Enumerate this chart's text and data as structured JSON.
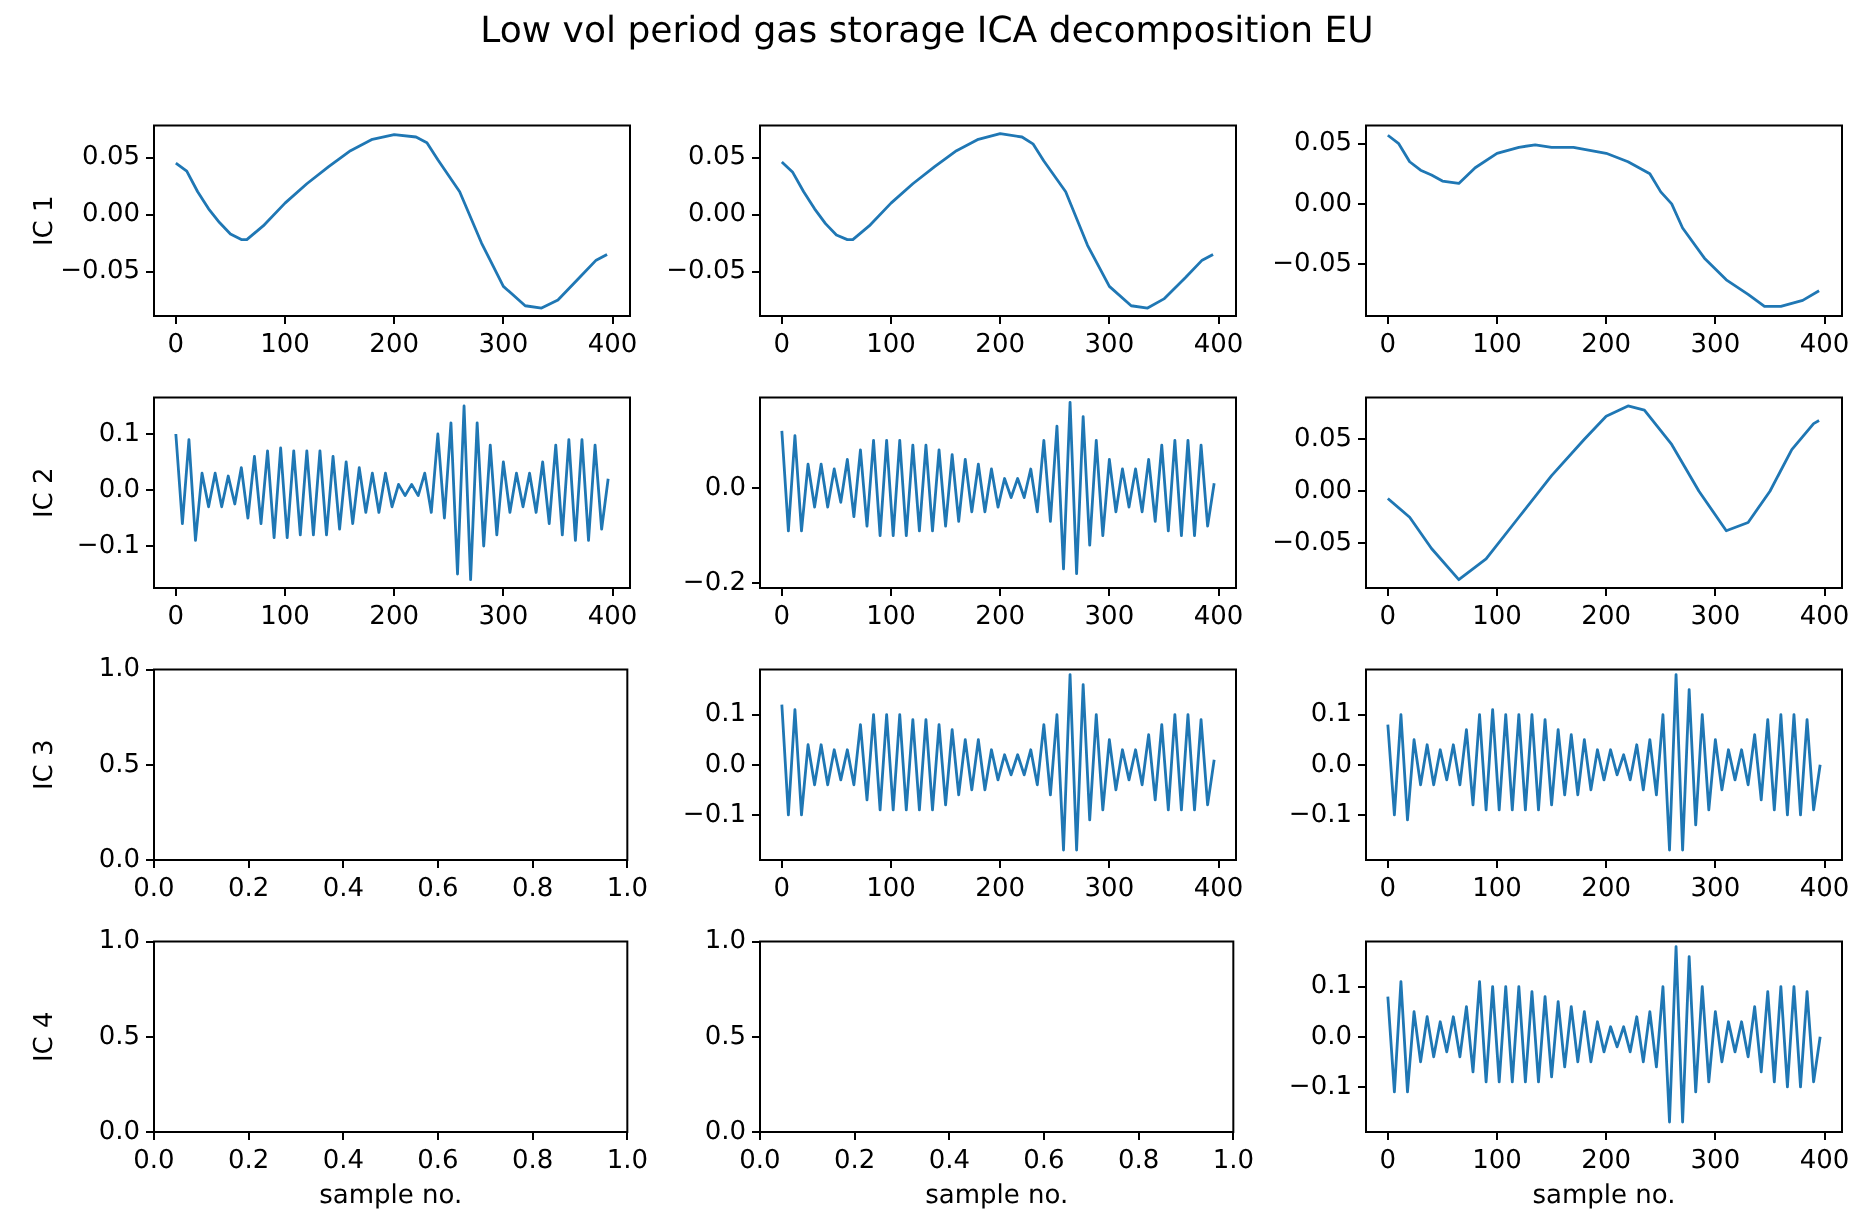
{
  "chart_data": [
    {
      "type": "line",
      "title": "Low vol period gas storage ICA decomposition EU",
      "ylabel": "IC 1",
      "color": "#1f77b4",
      "x": [
        0,
        10,
        20,
        30,
        40,
        50,
        60,
        65,
        80,
        100,
        120,
        140,
        160,
        180,
        200,
        220,
        230,
        240,
        260,
        280,
        300,
        320,
        335,
        350,
        370,
        385,
        395
      ],
      "values": [
        0.045,
        0.038,
        0.02,
        0.005,
        -0.007,
        -0.017,
        -0.022,
        -0.022,
        -0.01,
        0.01,
        0.027,
        0.042,
        0.056,
        0.066,
        0.07,
        0.068,
        0.063,
        0.048,
        0.02,
        -0.025,
        -0.063,
        -0.08,
        -0.082,
        -0.075,
        -0.055,
        -0.04,
        -0.035
      ],
      "xlim": [
        -20,
        416
      ],
      "ylim": [
        -0.089,
        0.078
      ],
      "xticks": [
        0,
        100,
        200,
        300,
        400
      ],
      "yticks": [
        {
          "value": -0.05,
          "label": "−0.05"
        },
        {
          "value": 0,
          "label": "0.00"
        },
        {
          "value": 0.05,
          "label": "0.05"
        }
      ],
      "grid": false,
      "legend": false
    },
    {
      "type": "line",
      "color": "#1f77b4",
      "x": [
        0,
        10,
        20,
        30,
        40,
        50,
        60,
        65,
        80,
        100,
        120,
        140,
        160,
        180,
        200,
        220,
        230,
        240,
        260,
        280,
        300,
        320,
        335,
        350,
        370,
        385,
        395
      ],
      "values": [
        0.046,
        0.037,
        0.02,
        0.005,
        -0.008,
        -0.018,
        -0.022,
        -0.022,
        -0.01,
        0.01,
        0.027,
        0.042,
        0.056,
        0.066,
        0.071,
        0.068,
        0.062,
        0.047,
        0.02,
        -0.027,
        -0.063,
        -0.08,
        -0.082,
        -0.074,
        -0.055,
        -0.04,
        -0.035
      ],
      "xlim": [
        -20,
        416
      ],
      "ylim": [
        -0.089,
        0.078
      ],
      "xticks": [
        0,
        100,
        200,
        300,
        400
      ],
      "yticks": [
        {
          "value": -0.05,
          "label": "−0.05"
        },
        {
          "value": 0,
          "label": "0.00"
        },
        {
          "value": 0.05,
          "label": "0.05"
        }
      ],
      "grid": false,
      "legend": false
    },
    {
      "type": "line",
      "color": "#1f77b4",
      "x": [
        0,
        10,
        20,
        30,
        40,
        50,
        65,
        80,
        100,
        120,
        135,
        150,
        170,
        200,
        220,
        240,
        250,
        260,
        270,
        290,
        310,
        330,
        345,
        360,
        380,
        395
      ],
      "values": [
        0.057,
        0.05,
        0.035,
        0.028,
        0.024,
        0.019,
        0.017,
        0.03,
        0.042,
        0.047,
        0.049,
        0.047,
        0.047,
        0.042,
        0.035,
        0.025,
        0.01,
        0.0,
        -0.02,
        -0.045,
        -0.063,
        -0.075,
        -0.085,
        -0.085,
        -0.08,
        -0.072
      ],
      "xlim": [
        -20,
        416
      ],
      "ylim": [
        -0.093,
        0.065
      ],
      "xticks": [
        0,
        100,
        200,
        300,
        400
      ],
      "yticks": [
        {
          "value": -0.05,
          "label": "−0.05"
        },
        {
          "value": 0,
          "label": "0.00"
        },
        {
          "value": 0.05,
          "label": "0.05"
        }
      ],
      "grid": false,
      "legend": false
    },
    {
      "type": "line",
      "ylabel": "IC 2",
      "color": "#1f77b4",
      "x": [
        0,
        6,
        12,
        18,
        24,
        30,
        36,
        42,
        48,
        54,
        60,
        66,
        72,
        78,
        84,
        90,
        96,
        102,
        108,
        114,
        120,
        126,
        132,
        138,
        144,
        150,
        156,
        162,
        168,
        174,
        180,
        186,
        192,
        198,
        204,
        210,
        216,
        222,
        228,
        234,
        240,
        246,
        252,
        258,
        264,
        270,
        276,
        282,
        288,
        294,
        300,
        306,
        312,
        318,
        324,
        330,
        336,
        342,
        348,
        354,
        360,
        366,
        372,
        378,
        384,
        390,
        396
      ],
      "values": [
        0.1,
        -0.06,
        0.09,
        -0.09,
        0.03,
        -0.03,
        0.03,
        -0.03,
        0.025,
        -0.025,
        0.04,
        -0.05,
        0.06,
        -0.06,
        0.07,
        -0.085,
        0.075,
        -0.085,
        0.07,
        -0.08,
        0.07,
        -0.08,
        0.07,
        -0.08,
        0.06,
        -0.07,
        0.05,
        -0.06,
        0.04,
        -0.04,
        0.03,
        -0.04,
        0.03,
        -0.03,
        0.01,
        -0.01,
        0.01,
        -0.01,
        0.03,
        -0.04,
        0.1,
        -0.05,
        0.12,
        -0.15,
        0.15,
        -0.16,
        0.12,
        -0.1,
        0.08,
        -0.08,
        0.05,
        -0.04,
        0.03,
        -0.03,
        0.03,
        -0.04,
        0.05,
        -0.06,
        0.08,
        -0.08,
        0.09,
        -0.09,
        0.09,
        -0.09,
        0.08,
        -0.07,
        0.02
      ],
      "xlim": [
        -20,
        416
      ],
      "ylim": [
        -0.175,
        0.165
      ],
      "xticks": [
        0,
        100,
        200,
        300,
        400
      ],
      "yticks": [
        {
          "value": -0.1,
          "label": "−0.1"
        },
        {
          "value": 0,
          "label": "0.0"
        },
        {
          "value": 0.1,
          "label": "0.1"
        }
      ],
      "grid": false,
      "legend": false
    },
    {
      "type": "line",
      "color": "#1f77b4",
      "x": [
        0,
        6,
        12,
        18,
        24,
        30,
        36,
        42,
        48,
        54,
        60,
        66,
        72,
        78,
        84,
        90,
        96,
        102,
        108,
        114,
        120,
        126,
        132,
        138,
        144,
        150,
        156,
        162,
        168,
        174,
        180,
        186,
        192,
        198,
        204,
        210,
        216,
        222,
        228,
        234,
        240,
        246,
        252,
        258,
        264,
        270,
        276,
        282,
        288,
        294,
        300,
        306,
        312,
        318,
        324,
        330,
        336,
        342,
        348,
        354,
        360,
        366,
        372,
        378,
        384,
        390,
        396
      ],
      "values": [
        0.12,
        -0.09,
        0.11,
        -0.09,
        0.05,
        -0.04,
        0.05,
        -0.04,
        0.04,
        -0.03,
        0.06,
        -0.06,
        0.08,
        -0.08,
        0.1,
        -0.1,
        0.1,
        -0.1,
        0.1,
        -0.1,
        0.09,
        -0.09,
        0.09,
        -0.09,
        0.08,
        -0.08,
        0.07,
        -0.07,
        0.06,
        -0.05,
        0.05,
        -0.05,
        0.04,
        -0.04,
        0.02,
        -0.02,
        0.02,
        -0.02,
        0.04,
        -0.05,
        0.1,
        -0.07,
        0.13,
        -0.17,
        0.18,
        -0.18,
        0.15,
        -0.12,
        0.1,
        -0.1,
        0.06,
        -0.05,
        0.04,
        -0.04,
        0.04,
        -0.05,
        0.06,
        -0.07,
        0.09,
        -0.09,
        0.1,
        -0.1,
        0.1,
        -0.1,
        0.09,
        -0.08,
        0.01
      ],
      "xlim": [
        -20,
        416
      ],
      "ylim": [
        -0.21,
        0.19
      ],
      "xticks": [
        0,
        100,
        200,
        300,
        400
      ],
      "yticks": [
        {
          "value": -0.2,
          "label": "−0.2"
        },
        {
          "value": 0,
          "label": "0.0"
        }
      ],
      "grid": false,
      "legend": false
    },
    {
      "type": "line",
      "color": "#1f77b4",
      "x": [
        0,
        20,
        40,
        65,
        90,
        120,
        150,
        180,
        200,
        220,
        235,
        260,
        285,
        310,
        330,
        350,
        370,
        390,
        395
      ],
      "values": [
        -0.007,
        -0.025,
        -0.055,
        -0.085,
        -0.065,
        -0.025,
        0.015,
        0.05,
        0.072,
        0.082,
        0.078,
        0.045,
        0.0,
        -0.038,
        -0.03,
        0.0,
        0.04,
        0.065,
        0.068
      ],
      "xlim": [
        -20,
        416
      ],
      "ylim": [
        -0.093,
        0.09
      ],
      "xticks": [
        0,
        100,
        200,
        300,
        400
      ],
      "yticks": [
        {
          "value": -0.05,
          "label": "−0.05"
        },
        {
          "value": 0,
          "label": "0.00"
        },
        {
          "value": 0.05,
          "label": "0.05"
        }
      ],
      "grid": false,
      "legend": false
    },
    {
      "type": "line",
      "ylabel": "IC 3",
      "xlim": [
        0,
        1
      ],
      "ylim": [
        0,
        1
      ],
      "xticks": [
        {
          "value": 0,
          "label": "0.0"
        },
        {
          "value": 0.2,
          "label": "0.2"
        },
        {
          "value": 0.4,
          "label": "0.4"
        },
        {
          "value": 0.6,
          "label": "0.6"
        },
        {
          "value": 0.8,
          "label": "0.8"
        },
        {
          "value": 1,
          "label": "1.0"
        }
      ],
      "yticks": [
        {
          "value": 0,
          "label": "0.0"
        },
        {
          "value": 0.5,
          "label": "0.5"
        },
        {
          "value": 1,
          "label": "1.0"
        }
      ],
      "grid": false,
      "legend": false
    },
    {
      "type": "line",
      "color": "#1f77b4",
      "x": [
        0,
        6,
        12,
        18,
        24,
        30,
        36,
        42,
        48,
        54,
        60,
        66,
        72,
        78,
        84,
        90,
        96,
        102,
        108,
        114,
        120,
        126,
        132,
        138,
        144,
        150,
        156,
        162,
        168,
        174,
        180,
        186,
        192,
        198,
        204,
        210,
        216,
        222,
        228,
        234,
        240,
        246,
        252,
        258,
        264,
        270,
        276,
        282,
        288,
        294,
        300,
        306,
        312,
        318,
        324,
        330,
        336,
        342,
        348,
        354,
        360,
        366,
        372,
        378,
        384,
        390,
        396
      ],
      "values": [
        0.12,
        -0.1,
        0.11,
        -0.1,
        0.04,
        -0.04,
        0.04,
        -0.04,
        0.03,
        -0.03,
        0.03,
        -0.04,
        0.08,
        -0.07,
        0.1,
        -0.09,
        0.1,
        -0.09,
        0.1,
        -0.09,
        0.09,
        -0.09,
        0.09,
        -0.09,
        0.08,
        -0.08,
        0.07,
        -0.06,
        0.05,
        -0.05,
        0.05,
        -0.05,
        0.03,
        -0.03,
        0.02,
        -0.02,
        0.02,
        -0.02,
        0.03,
        -0.04,
        0.08,
        -0.06,
        0.1,
        -0.17,
        0.18,
        -0.17,
        0.16,
        -0.11,
        0.1,
        -0.09,
        0.05,
        -0.05,
        0.03,
        -0.03,
        0.03,
        -0.04,
        0.06,
        -0.07,
        0.08,
        -0.09,
        0.1,
        -0.09,
        0.1,
        -0.09,
        0.09,
        -0.08,
        0.01
      ],
      "xlim": [
        -20,
        416
      ],
      "ylim": [
        -0.19,
        0.19
      ],
      "xticks": [
        0,
        100,
        200,
        300,
        400
      ],
      "yticks": [
        {
          "value": -0.1,
          "label": "−0.1"
        },
        {
          "value": 0,
          "label": "0.0"
        },
        {
          "value": 0.1,
          "label": "0.1"
        }
      ],
      "grid": false,
      "legend": false
    },
    {
      "type": "line",
      "color": "#1f77b4",
      "x": [
        0,
        6,
        12,
        18,
        24,
        30,
        36,
        42,
        48,
        54,
        60,
        66,
        72,
        78,
        84,
        90,
        96,
        102,
        108,
        114,
        120,
        126,
        132,
        138,
        144,
        150,
        156,
        162,
        168,
        174,
        180,
        186,
        192,
        198,
        204,
        210,
        216,
        222,
        228,
        234,
        240,
        246,
        252,
        258,
        264,
        270,
        276,
        282,
        288,
        294,
        300,
        306,
        312,
        318,
        324,
        330,
        336,
        342,
        348,
        354,
        360,
        366,
        372,
        378,
        384,
        390,
        396
      ],
      "values": [
        0.08,
        -0.1,
        0.1,
        -0.11,
        0.05,
        -0.04,
        0.04,
        -0.04,
        0.03,
        -0.03,
        0.04,
        -0.04,
        0.07,
        -0.08,
        0.1,
        -0.09,
        0.11,
        -0.09,
        0.1,
        -0.09,
        0.1,
        -0.09,
        0.1,
        -0.09,
        0.09,
        -0.08,
        0.07,
        -0.06,
        0.06,
        -0.06,
        0.05,
        -0.05,
        0.03,
        -0.03,
        0.03,
        -0.02,
        0.02,
        -0.03,
        0.04,
        -0.05,
        0.05,
        -0.06,
        0.1,
        -0.17,
        0.18,
        -0.17,
        0.15,
        -0.12,
        0.1,
        -0.09,
        0.05,
        -0.05,
        0.03,
        -0.03,
        0.03,
        -0.04,
        0.06,
        -0.07,
        0.09,
        -0.09,
        0.1,
        -0.1,
        0.1,
        -0.1,
        0.09,
        -0.09,
        0.0
      ],
      "xlim": [
        -20,
        416
      ],
      "ylim": [
        -0.19,
        0.19
      ],
      "xticks": [
        0,
        100,
        200,
        300,
        400
      ],
      "yticks": [
        {
          "value": -0.1,
          "label": "−0.1"
        },
        {
          "value": 0,
          "label": "0.0"
        },
        {
          "value": 0.1,
          "label": "0.1"
        }
      ],
      "grid": false,
      "legend": false
    },
    {
      "type": "line",
      "ylabel": "IC 4",
      "xlabel": "sample no.",
      "xlim": [
        0,
        1
      ],
      "ylim": [
        0,
        1
      ],
      "xticks": [
        {
          "value": 0,
          "label": "0.0"
        },
        {
          "value": 0.2,
          "label": "0.2"
        },
        {
          "value": 0.4,
          "label": "0.4"
        },
        {
          "value": 0.6,
          "label": "0.6"
        },
        {
          "value": 0.8,
          "label": "0.8"
        },
        {
          "value": 1,
          "label": "1.0"
        }
      ],
      "yticks": [
        {
          "value": 0,
          "label": "0.0"
        },
        {
          "value": 0.5,
          "label": "0.5"
        },
        {
          "value": 1,
          "label": "1.0"
        }
      ],
      "grid": false,
      "legend": false
    },
    {
      "type": "line",
      "xlabel": "sample no.",
      "xlim": [
        0,
        1
      ],
      "ylim": [
        0,
        1
      ],
      "xticks": [
        {
          "value": 0,
          "label": "0.0"
        },
        {
          "value": 0.2,
          "label": "0.2"
        },
        {
          "value": 0.4,
          "label": "0.4"
        },
        {
          "value": 0.6,
          "label": "0.6"
        },
        {
          "value": 0.8,
          "label": "0.8"
        },
        {
          "value": 1,
          "label": "1.0"
        }
      ],
      "yticks": [
        {
          "value": 0,
          "label": "0.0"
        },
        {
          "value": 0.5,
          "label": "0.5"
        },
        {
          "value": 1,
          "label": "1.0"
        }
      ],
      "grid": false,
      "legend": false
    },
    {
      "type": "line",
      "xlabel": "sample no.",
      "color": "#1f77b4",
      "x": [
        0,
        6,
        12,
        18,
        24,
        30,
        36,
        42,
        48,
        54,
        60,
        66,
        72,
        78,
        84,
        90,
        96,
        102,
        108,
        114,
        120,
        126,
        132,
        138,
        144,
        150,
        156,
        162,
        168,
        174,
        180,
        186,
        192,
        198,
        204,
        210,
        216,
        222,
        228,
        234,
        240,
        246,
        252,
        258,
        264,
        270,
        276,
        282,
        288,
        294,
        300,
        306,
        312,
        318,
        324,
        330,
        336,
        342,
        348,
        354,
        360,
        366,
        372,
        378,
        384,
        390,
        396
      ],
      "values": [
        0.08,
        -0.11,
        0.11,
        -0.11,
        0.05,
        -0.05,
        0.04,
        -0.04,
        0.03,
        -0.03,
        0.04,
        -0.04,
        0.06,
        -0.07,
        0.11,
        -0.09,
        0.1,
        -0.09,
        0.1,
        -0.09,
        0.1,
        -0.09,
        0.09,
        -0.09,
        0.08,
        -0.08,
        0.07,
        -0.06,
        0.06,
        -0.05,
        0.05,
        -0.05,
        0.03,
        -0.03,
        0.02,
        -0.02,
        0.02,
        -0.03,
        0.04,
        -0.05,
        0.05,
        -0.06,
        0.1,
        -0.17,
        0.18,
        -0.17,
        0.16,
        -0.11,
        0.1,
        -0.09,
        0.05,
        -0.05,
        0.03,
        -0.03,
        0.03,
        -0.04,
        0.06,
        -0.07,
        0.09,
        -0.09,
        0.1,
        -0.1,
        0.1,
        -0.1,
        0.09,
        -0.09,
        0.0
      ],
      "xlim": [
        -20,
        416
      ],
      "ylim": [
        -0.19,
        0.19
      ],
      "xticks": [
        0,
        100,
        200,
        300,
        400
      ],
      "yticks": [
        {
          "value": -0.1,
          "label": "−0.1"
        },
        {
          "value": 0,
          "label": "0.0"
        },
        {
          "value": 0.1,
          "label": "0.1"
        }
      ],
      "grid": false,
      "legend": false
    }
  ]
}
